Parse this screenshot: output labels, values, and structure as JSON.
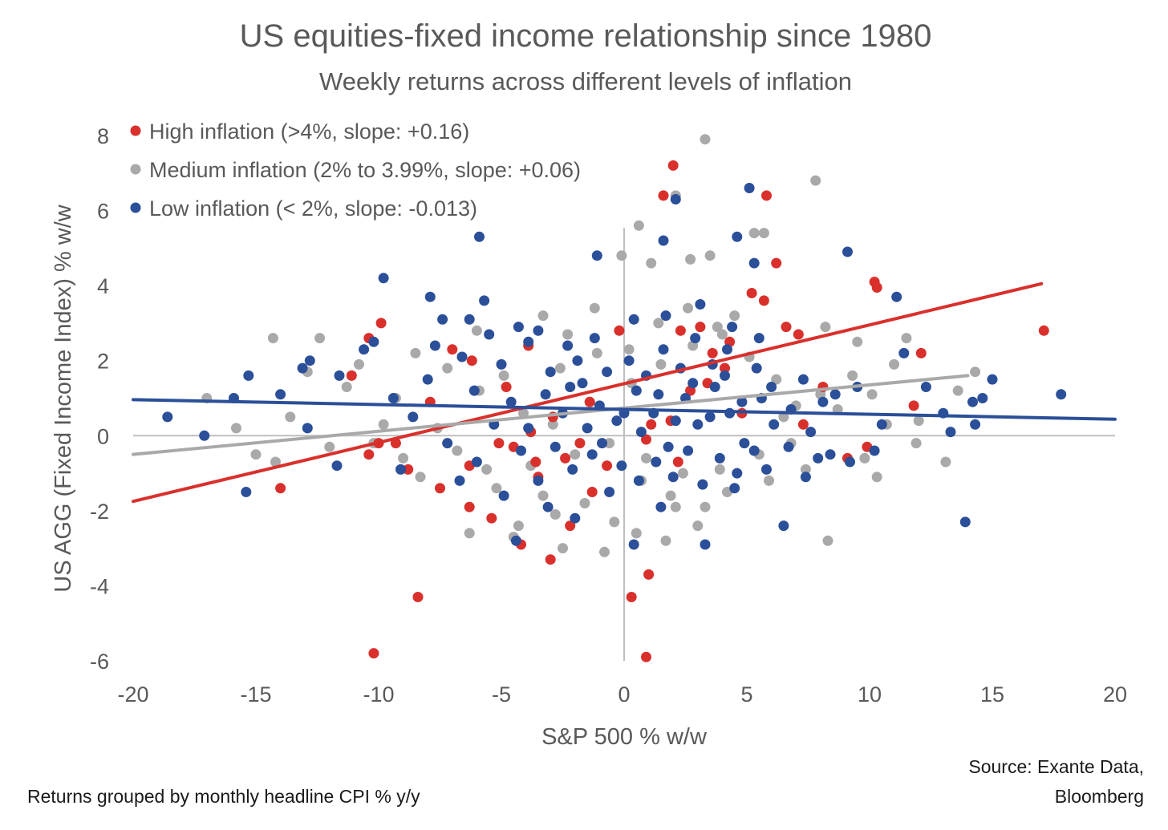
{
  "chart_data": {
    "type": "scatter",
    "title": "US equities-fixed income relationship since 1980",
    "subtitle": "Weekly returns across different levels of inflation",
    "xlabel": "S&P 500 % w/w",
    "ylabel": "US AGG (Fixed Income Index) % w/w",
    "xlim": [
      -20,
      20
    ],
    "ylim": [
      -6,
      8
    ],
    "x_ticks": [
      "-20",
      "-15",
      "-10",
      "-5",
      "0",
      "5",
      "10",
      "15",
      "20"
    ],
    "y_ticks": [
      "8",
      "6",
      "4",
      "2",
      "0",
      "-2",
      "-4",
      "-6"
    ],
    "grid": false,
    "legend_position": "top-left",
    "footnote": "Returns grouped by monthly headline CPI % y/y",
    "source_line1": "Source: Exante Data,",
    "source_line2": "Bloomberg",
    "series": [
      {
        "name": "High inflation (>4%, slope: +0.16)",
        "color": "#d9302c",
        "trendline": {
          "slope": 0.16,
          "x": [
            -20,
            17
          ],
          "y": [
            -1.75,
            4.05
          ]
        },
        "points": [
          [
            2.0,
            7.2
          ],
          [
            1.6,
            6.4
          ],
          [
            5.8,
            6.4
          ],
          [
            6.2,
            4.6
          ],
          [
            10.2,
            4.1
          ],
          [
            10.3,
            3.95
          ],
          [
            17.1,
            2.8
          ],
          [
            12.1,
            2.2
          ],
          [
            -10.4,
            2.6
          ],
          [
            -9.9,
            3.0
          ],
          [
            -11.1,
            1.6
          ],
          [
            -7.0,
            2.3
          ],
          [
            -6.2,
            2.0
          ],
          [
            -3.9,
            2.4
          ],
          [
            5.2,
            3.8
          ],
          [
            5.7,
            3.6
          ],
          [
            3.1,
            2.9
          ],
          [
            2.3,
            2.8
          ],
          [
            6.6,
            2.9
          ],
          [
            7.1,
            2.7
          ],
          [
            4.3,
            2.5
          ],
          [
            -0.2,
            2.8
          ],
          [
            -14.0,
            -1.4
          ],
          [
            -10.2,
            -5.8
          ],
          [
            -8.4,
            -4.3
          ],
          [
            0.3,
            -4.3
          ],
          [
            0.9,
            -5.9
          ],
          [
            1.0,
            -3.7
          ],
          [
            -3.0,
            -3.3
          ],
          [
            -4.2,
            -2.9
          ],
          [
            -2.2,
            -2.4
          ],
          [
            -6.3,
            -1.9
          ],
          [
            -7.5,
            -1.4
          ],
          [
            -8.8,
            -0.9
          ],
          [
            -10.4,
            -0.5
          ],
          [
            -9.3,
            -0.2
          ],
          [
            -10.0,
            -0.2
          ],
          [
            -4.5,
            -0.3
          ],
          [
            -3.6,
            -0.7
          ],
          [
            -6.3,
            -0.8
          ],
          [
            -2.4,
            -0.6
          ],
          [
            -5.1,
            -0.2
          ],
          [
            -1.8,
            -0.2
          ],
          [
            -0.7,
            -0.8
          ],
          [
            1.1,
            0.3
          ],
          [
            1.9,
            0.4
          ],
          [
            2.7,
            1.2
          ],
          [
            3.4,
            1.4
          ],
          [
            4.1,
            1.8
          ],
          [
            -1.4,
            0.9
          ],
          [
            -2.9,
            0.5
          ],
          [
            -3.8,
            0.1
          ],
          [
            9.1,
            -0.6
          ],
          [
            9.9,
            -0.3
          ],
          [
            7.3,
            0.3
          ],
          [
            8.1,
            1.3
          ],
          [
            11.8,
            0.8
          ],
          [
            -1.3,
            -1.5
          ],
          [
            -3.5,
            -1.1
          ],
          [
            -5.4,
            -2.2
          ],
          [
            0.9,
            -0.1
          ],
          [
            2.2,
            -0.7
          ],
          [
            4.8,
            0.6
          ],
          [
            3.6,
            2.2
          ],
          [
            -4.8,
            1.3
          ],
          [
            -7.9,
            0.9
          ]
        ]
      },
      {
        "name": "Medium inflation (2% to 3.99%, slope: +0.06)",
        "color": "#a9a9a9",
        "trendline": {
          "slope": 0.06,
          "x": [
            -20,
            14
          ],
          "y": [
            -0.5,
            1.6
          ]
        },
        "points": [
          [
            3.3,
            7.9
          ],
          [
            7.8,
            6.8
          ],
          [
            2.1,
            6.4
          ],
          [
            0.6,
            5.6
          ],
          [
            5.3,
            5.4
          ],
          [
            5.7,
            5.4
          ],
          [
            -0.1,
            4.8
          ],
          [
            1.1,
            4.6
          ],
          [
            3.5,
            4.8
          ],
          [
            2.7,
            4.7
          ],
          [
            -1.2,
            3.4
          ],
          [
            -2.3,
            2.7
          ],
          [
            4.5,
            3.2
          ],
          [
            8.2,
            2.9
          ],
          [
            9.5,
            2.5
          ],
          [
            11.5,
            2.6
          ],
          [
            13.1,
            -0.7
          ],
          [
            8.3,
            -2.8
          ],
          [
            10.3,
            -1.1
          ],
          [
            -14.3,
            2.6
          ],
          [
            -12.4,
            2.6
          ],
          [
            -17.0,
            1.0
          ],
          [
            -15.0,
            -0.5
          ],
          [
            -14.2,
            -0.7
          ],
          [
            -10.8,
            1.9
          ],
          [
            -9.3,
            1.0
          ],
          [
            -8.3,
            -1.1
          ],
          [
            -6.3,
            -2.6
          ],
          [
            -4.5,
            -2.7
          ],
          [
            -2.5,
            -3.0
          ],
          [
            -0.8,
            -3.1
          ],
          [
            0.5,
            -2.6
          ],
          [
            1.7,
            -2.8
          ],
          [
            3.0,
            -2.4
          ],
          [
            2.1,
            -1.9
          ],
          [
            -1.6,
            -1.8
          ],
          [
            -3.3,
            -1.6
          ],
          [
            -5.2,
            -1.4
          ],
          [
            4.2,
            -1.5
          ],
          [
            5.9,
            -1.2
          ],
          [
            7.4,
            -0.9
          ],
          [
            9.8,
            -0.6
          ],
          [
            12.0,
            0.4
          ],
          [
            14.3,
            1.7
          ],
          [
            13.6,
            1.2
          ],
          [
            11.0,
            1.9
          ],
          [
            10.1,
            1.1
          ],
          [
            8.7,
            0.7
          ],
          [
            -7.2,
            1.8
          ],
          [
            -5.9,
            1.2
          ],
          [
            -4.1,
            0.6
          ],
          [
            -2.9,
            0.3
          ],
          [
            -1.4,
            0.9
          ],
          [
            0.3,
            1.4
          ],
          [
            1.5,
            1.9
          ],
          [
            2.8,
            2.4
          ],
          [
            4.0,
            2.7
          ],
          [
            5.1,
            2.1
          ],
          [
            6.2,
            1.5
          ],
          [
            7.0,
            0.8
          ],
          [
            -6.8,
            -0.4
          ],
          [
            -5.6,
            -0.9
          ],
          [
            -3.8,
            -0.8
          ],
          [
            -2.0,
            -0.5
          ],
          [
            -0.6,
            -0.2
          ],
          [
            0.9,
            -0.6
          ],
          [
            2.4,
            -1.0
          ],
          [
            3.9,
            -0.9
          ],
          [
            5.5,
            -0.5
          ],
          [
            6.8,
            -0.2
          ],
          [
            -9.8,
            0.3
          ],
          [
            -11.3,
            1.3
          ],
          [
            -8.5,
            2.2
          ],
          [
            -6.0,
            2.8
          ],
          [
            -3.3,
            3.2
          ],
          [
            -1.1,
            2.2
          ],
          [
            0.2,
            2.3
          ],
          [
            1.4,
            3.0
          ],
          [
            2.6,
            3.4
          ],
          [
            3.8,
            2.9
          ],
          [
            -12.9,
            1.7
          ],
          [
            -13.6,
            0.5
          ],
          [
            -10.2,
            -0.2
          ],
          [
            -7.6,
            0.2
          ],
          [
            -4.9,
            1.6
          ],
          [
            -2.6,
            1.8
          ],
          [
            0.7,
            -1.2
          ],
          [
            1.9,
            -1.6
          ],
          [
            3.3,
            -1.9
          ],
          [
            -0.4,
            -2.3
          ],
          [
            -2.8,
            -2.1
          ],
          [
            -4.3,
            -2.4
          ],
          [
            6.5,
            0.5
          ],
          [
            8.0,
            1.1
          ],
          [
            9.3,
            1.6
          ],
          [
            10.7,
            0.3
          ],
          [
            11.9,
            -0.2
          ],
          [
            -15.8,
            0.2
          ],
          [
            -12.0,
            -0.3
          ],
          [
            -9.0,
            -0.6
          ]
        ]
      },
      {
        "name": "Low inflation (< 2%, slope: -0.013)",
        "color": "#2b4f98",
        "trendline": {
          "slope": -0.013,
          "x": [
            -20,
            20
          ],
          "y": [
            0.96,
            0.44
          ]
        },
        "points": [
          [
            5.1,
            6.6
          ],
          [
            2.1,
            6.3
          ],
          [
            4.6,
            5.3
          ],
          [
            1.6,
            5.2
          ],
          [
            -5.9,
            5.3
          ],
          [
            -1.1,
            4.8
          ],
          [
            5.3,
            4.6
          ],
          [
            9.1,
            4.9
          ],
          [
            11.1,
            3.7
          ],
          [
            -9.8,
            4.2
          ],
          [
            -7.9,
            3.7
          ],
          [
            -5.7,
            3.6
          ],
          [
            -7.4,
            3.1
          ],
          [
            -6.3,
            3.1
          ],
          [
            -5.5,
            2.7
          ],
          [
            -3.5,
            2.8
          ],
          [
            -4.3,
            2.9
          ],
          [
            -3.9,
            2.5
          ],
          [
            -2.3,
            2.4
          ],
          [
            -1.9,
            2.0
          ],
          [
            -10.2,
            2.5
          ],
          [
            -13.1,
            1.8
          ],
          [
            -12.8,
            2.0
          ],
          [
            -11.6,
            1.6
          ],
          [
            -15.3,
            1.6
          ],
          [
            -15.9,
            1.0
          ],
          [
            -14.0,
            1.1
          ],
          [
            -18.6,
            0.5
          ],
          [
            -17.1,
            0.0
          ],
          [
            -12.9,
            0.2
          ],
          [
            -11.7,
            -0.8
          ],
          [
            -15.4,
            -1.5
          ],
          [
            -9.1,
            -0.9
          ],
          [
            -8.6,
            0.5
          ],
          [
            -7.2,
            -0.2
          ],
          [
            -6.0,
            -0.7
          ],
          [
            -4.4,
            -2.8
          ],
          [
            -3.1,
            -1.9
          ],
          [
            -2.0,
            -2.2
          ],
          [
            -0.6,
            -1.5
          ],
          [
            0.4,
            -2.9
          ],
          [
            1.5,
            -1.9
          ],
          [
            3.3,
            -2.9
          ],
          [
            4.5,
            -1.4
          ],
          [
            5.8,
            -0.9
          ],
          [
            6.5,
            -2.4
          ],
          [
            7.4,
            -1.1
          ],
          [
            8.4,
            -0.5
          ],
          [
            9.2,
            -0.7
          ],
          [
            10.5,
            0.3
          ],
          [
            11.4,
            2.2
          ],
          [
            12.3,
            1.3
          ],
          [
            13.0,
            0.6
          ],
          [
            13.3,
            0.1
          ],
          [
            14.2,
            0.9
          ],
          [
            14.3,
            0.3
          ],
          [
            15.0,
            1.5
          ],
          [
            14.6,
            1.0
          ],
          [
            17.8,
            1.1
          ],
          [
            13.9,
            -2.3
          ],
          [
            -1.0,
            0.8
          ],
          [
            -0.3,
            0.4
          ],
          [
            0.5,
            1.2
          ],
          [
            1.2,
            0.6
          ],
          [
            1.8,
            -0.3
          ],
          [
            2.5,
            1.0
          ],
          [
            3.0,
            0.3
          ],
          [
            3.7,
            1.3
          ],
          [
            4.3,
            0.6
          ],
          [
            4.9,
            -0.2
          ],
          [
            5.6,
            1.0
          ],
          [
            6.1,
            0.3
          ],
          [
            6.8,
            0.7
          ],
          [
            7.6,
            0.1
          ],
          [
            8.1,
            0.9
          ],
          [
            -1.7,
            1.4
          ],
          [
            -2.5,
            0.6
          ],
          [
            -3.2,
            1.1
          ],
          [
            -3.9,
            0.2
          ],
          [
            -4.6,
            0.9
          ],
          [
            -5.3,
            0.3
          ],
          [
            -6.1,
            1.2
          ],
          [
            -0.7,
            1.7
          ],
          [
            0.2,
            2.0
          ],
          [
            0.9,
            1.6
          ],
          [
            1.6,
            2.3
          ],
          [
            2.3,
            1.8
          ],
          [
            2.9,
            2.6
          ],
          [
            3.6,
            1.9
          ],
          [
            4.2,
            2.3
          ],
          [
            -1.3,
            -0.5
          ],
          [
            -0.1,
            -0.8
          ],
          [
            0.6,
            -1.2
          ],
          [
            1.3,
            -0.7
          ],
          [
            2.0,
            -1.1
          ],
          [
            2.6,
            -0.4
          ],
          [
            3.2,
            -1.3
          ],
          [
            3.9,
            -0.6
          ],
          [
            4.6,
            -1.0
          ],
          [
            5.3,
            -0.4
          ],
          [
            -2.1,
            -0.9
          ],
          [
            -2.8,
            -0.3
          ],
          [
            -3.5,
            -1.2
          ],
          [
            -4.2,
            -0.4
          ],
          [
            -4.9,
            -1.6
          ],
          [
            -1.5,
            0.2
          ],
          [
            -0.9,
            -0.2
          ],
          [
            0.0,
            0.6
          ],
          [
            0.7,
            0.1
          ],
          [
            1.4,
            1.1
          ],
          [
            2.1,
            0.4
          ],
          [
            2.8,
            1.4
          ],
          [
            3.5,
            0.5
          ],
          [
            4.1,
            1.6
          ],
          [
            4.8,
            0.9
          ],
          [
            5.4,
            1.8
          ],
          [
            6.0,
            1.3
          ],
          [
            6.7,
            -0.3
          ],
          [
            7.3,
            1.5
          ],
          [
            7.9,
            -0.6
          ],
          [
            8.6,
            1.1
          ],
          [
            9.5,
            1.3
          ],
          [
            10.2,
            -0.4
          ],
          [
            -6.7,
            -1.2
          ],
          [
            -8.0,
            1.5
          ],
          [
            -9.4,
            1.0
          ],
          [
            -10.6,
            2.3
          ],
          [
            -7.7,
            2.4
          ],
          [
            -6.6,
            2.1
          ],
          [
            -5.0,
            1.9
          ],
          [
            -3.0,
            1.7
          ],
          [
            -2.2,
            1.3
          ],
          [
            -1.2,
            2.6
          ],
          [
            0.4,
            3.1
          ],
          [
            1.7,
            3.2
          ],
          [
            3.1,
            3.5
          ],
          [
            4.4,
            2.9
          ],
          [
            5.5,
            2.6
          ]
        ]
      }
    ]
  }
}
